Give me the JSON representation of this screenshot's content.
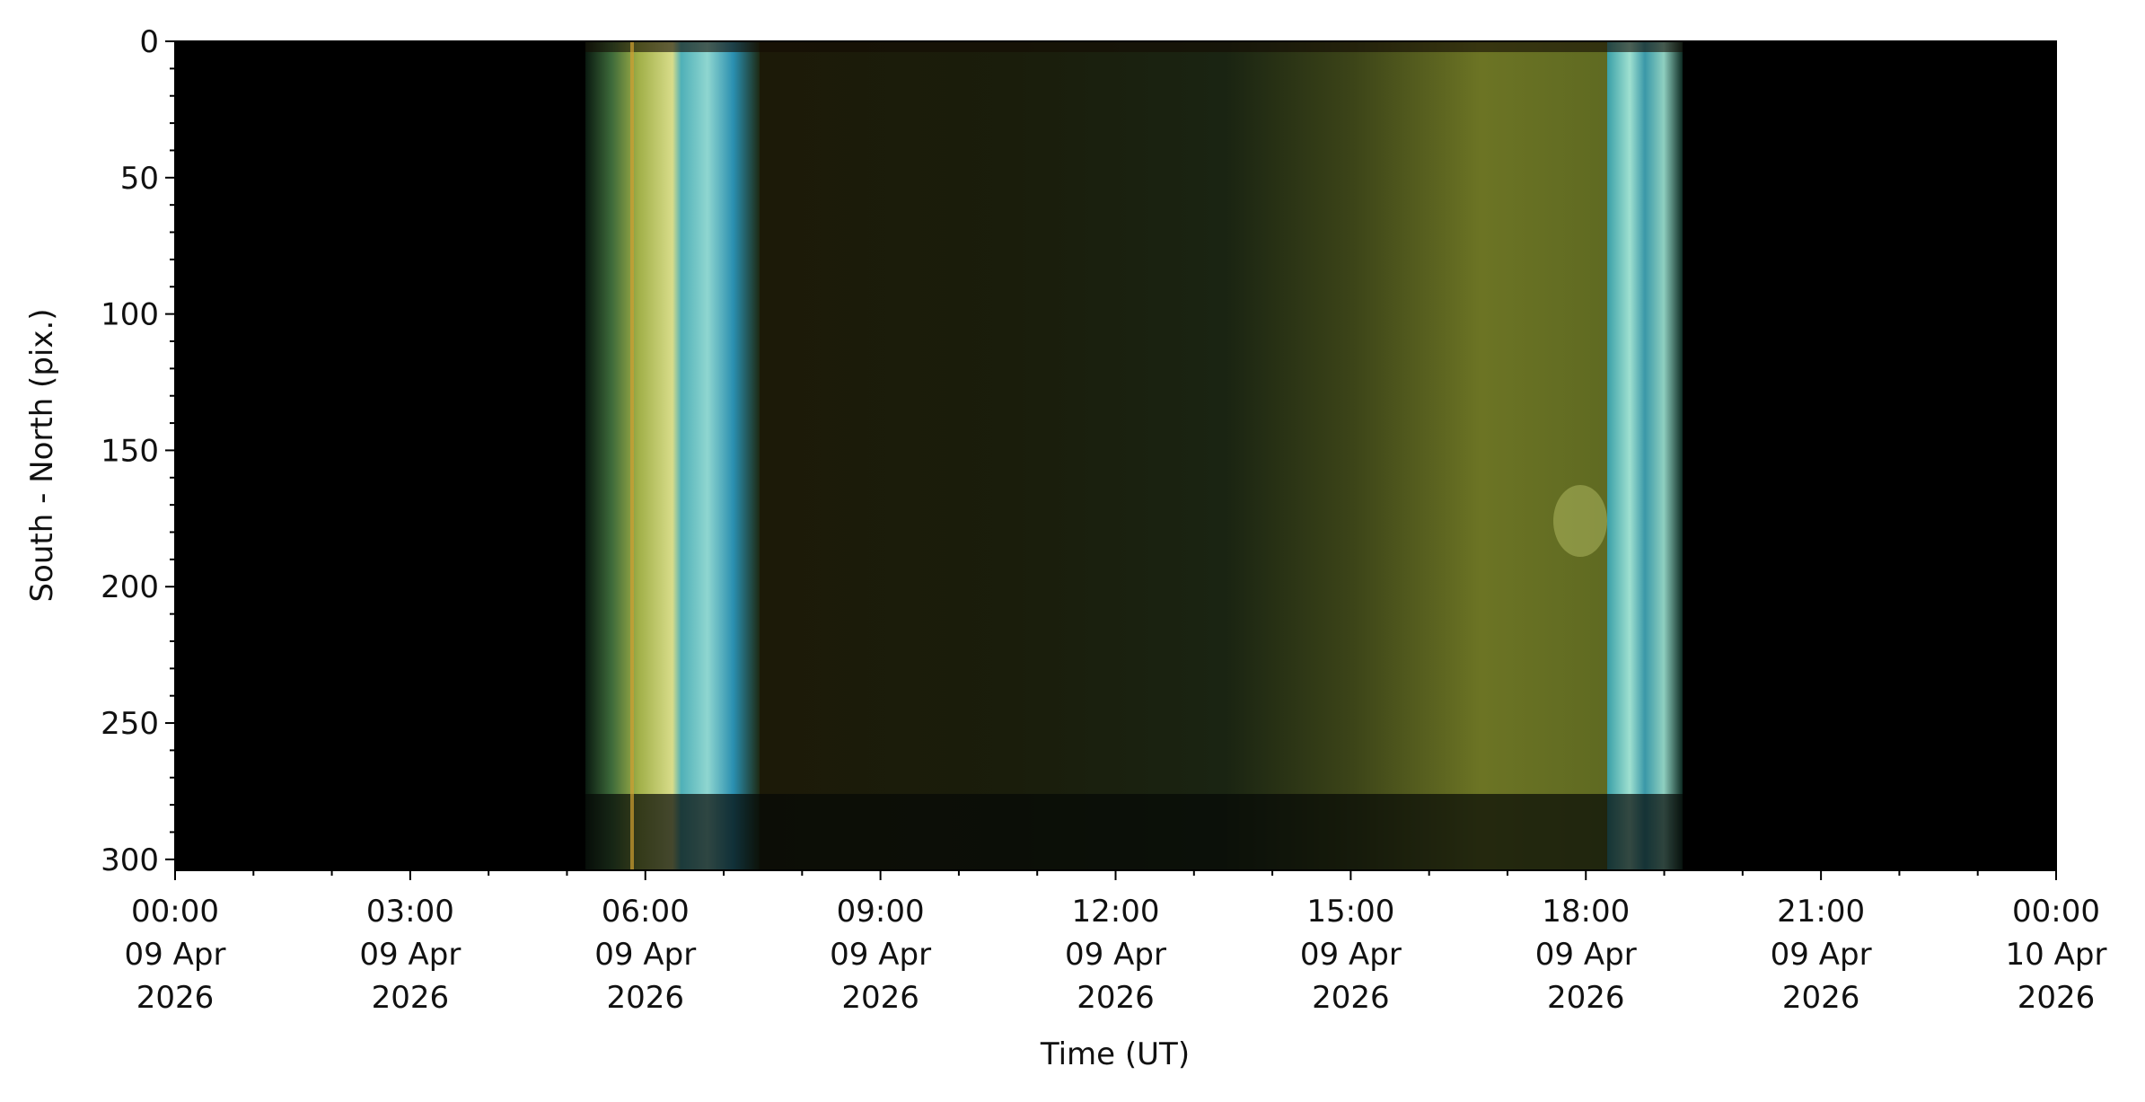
{
  "chart_data": {
    "type": "keogram",
    "xlabel": "Time (UT)",
    "ylabel": "South - North (pix.)",
    "xlim": [
      "2026-04-09 00:00",
      "2026-04-10 00:00"
    ],
    "xticks": [
      {
        "value": "2026-04-09 00:00",
        "label": [
          "00:00",
          "09 Apr",
          "2026"
        ]
      },
      {
        "value": "2026-04-09 03:00",
        "label": [
          "03:00",
          "09 Apr",
          "2026"
        ]
      },
      {
        "value": "2026-04-09 06:00",
        "label": [
          "06:00",
          "09 Apr",
          "2026"
        ]
      },
      {
        "value": "2026-04-09 09:00",
        "label": [
          "09:00",
          "09 Apr",
          "2026"
        ]
      },
      {
        "value": "2026-04-09 12:00",
        "label": [
          "12:00",
          "09 Apr",
          "2026"
        ]
      },
      {
        "value": "2026-04-09 15:00",
        "label": [
          "15:00",
          "09 Apr",
          "2026"
        ]
      },
      {
        "value": "2026-04-09 18:00",
        "label": [
          "18:00",
          "09 Apr",
          "2026"
        ]
      },
      {
        "value": "2026-04-09 21:00",
        "label": [
          "21:00",
          "09 Apr",
          "2026"
        ]
      },
      {
        "value": "2026-04-10 00:00",
        "label": [
          "00:00",
          "10 Apr",
          "2026"
        ]
      }
    ],
    "xminorticks": [
      "2026-04-09 01:00",
      "2026-04-09 02:00",
      "2026-04-09 04:00",
      "2026-04-09 05:00",
      "2026-04-09 07:00",
      "2026-04-09 08:00",
      "2026-04-09 10:00",
      "2026-04-09 11:00",
      "2026-04-09 13:00",
      "2026-04-09 14:00",
      "2026-04-09 16:00",
      "2026-04-09 17:00",
      "2026-04-09 19:00",
      "2026-04-09 20:00",
      "2026-04-09 22:00",
      "2026-04-09 23:00"
    ],
    "ylim": [
      0,
      304
    ],
    "y_inverted": true,
    "yticks": [
      0,
      50,
      100,
      150,
      200,
      250,
      300
    ],
    "yminorticks": [
      10,
      20,
      30,
      40,
      60,
      70,
      80,
      90,
      110,
      120,
      130,
      140,
      160,
      170,
      180,
      190,
      210,
      220,
      230,
      240,
      260,
      270,
      280,
      290
    ]
  }
}
